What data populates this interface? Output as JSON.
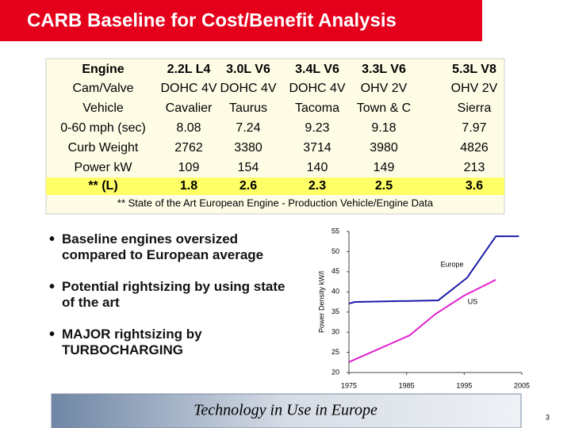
{
  "title": "CARB Baseline for Cost/Benefit Analysis",
  "table": {
    "header": [
      "Engine",
      "2.2L L4",
      "3.0L V6",
      "3.4L V6",
      "3.3L V6",
      "5.3L V8"
    ],
    "rows": [
      [
        "Cam/Valve",
        "DOHC 4V",
        "DOHC 4V",
        "DOHC 4V",
        "OHV 2V",
        "OHV 2V"
      ],
      [
        "Vehicle",
        "Cavalier",
        "Taurus",
        "Tacoma",
        "Town & C",
        "Sierra"
      ],
      [
        "0-60 mph (sec)",
        "8.08",
        "7.24",
        "9.23",
        "9.18",
        "7.97"
      ],
      [
        "Curb Weight",
        "2762",
        "3380",
        "3714",
        "3980",
        "4826"
      ],
      [
        "Power kW",
        "109",
        "154",
        "140",
        "149",
        "213"
      ],
      [
        "** (L)",
        "1.8",
        "2.6",
        "2.3",
        "2.5",
        "3.6"
      ]
    ],
    "footnote": "** State of the Art European Engine - Production Vehicle/Engine Data"
  },
  "bullets": [
    "Baseline engines oversized compared to European average",
    "Potential rightsizing by using state of the art",
    "MAJOR rightsizing by TURBOCHARGING"
  ],
  "chart_data": {
    "type": "line",
    "y_label": "Power Density kW/l",
    "xlim": [
      1975,
      2005
    ],
    "xticks": [
      1975,
      1985,
      1995,
      2005
    ],
    "ylim": [
      20,
      55
    ],
    "yticks": [
      20,
      25,
      30,
      35,
      40,
      45,
      50,
      55
    ],
    "series": [
      {
        "name": "Europe",
        "color": "#1a1aa8",
        "x": [
          1975,
          1976,
          1990.5,
          1995.5,
          2000.5,
          2004.5
        ],
        "values": [
          37.1,
          37.5,
          37.9,
          43.5,
          53.8,
          53.8
        ]
      },
      {
        "name": "US",
        "color": "#e020d0",
        "x": [
          1975,
          1985.5,
          1990,
          1995,
          2000.5
        ],
        "values": [
          22.6,
          29.2,
          34.5,
          39.1,
          43
        ]
      }
    ]
  },
  "footer": "Technology in Use in Europe",
  "page_number": "3"
}
